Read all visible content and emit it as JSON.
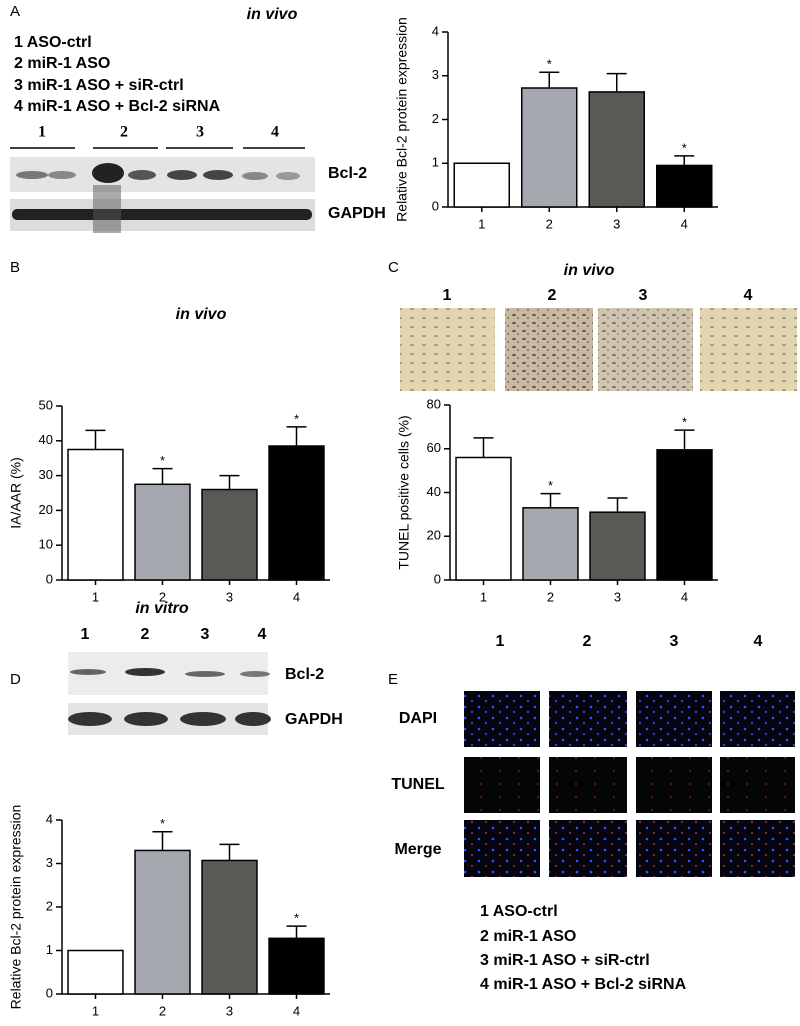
{
  "panel_labels": [
    "A",
    "B",
    "C",
    "D",
    "E"
  ],
  "panel_a": {
    "title": "in vivo",
    "legend": [
      "1  ASO-ctrl",
      "2  miR-1 ASO",
      "3  miR-1 ASO + siR-ctrl",
      "4  miR-1 ASO + Bcl-2 siRNA"
    ],
    "lane_labels": [
      "1",
      "2",
      "3",
      "4"
    ],
    "blot_labels": [
      "Bcl-2",
      "GAPDH"
    ]
  },
  "panel_c": {
    "image_labels": [
      "1",
      "2",
      "3",
      "4"
    ]
  },
  "panel_d": {
    "title": "in vitro",
    "lane_labels": [
      "1",
      "2",
      "3",
      "4"
    ],
    "blot_labels": [
      "Bcl-2",
      "GAPDH"
    ]
  },
  "panel_e": {
    "column_labels": [
      "1",
      "2",
      "3",
      "4"
    ],
    "row_labels": [
      "DAPI",
      "TUNEL",
      "Merge"
    ],
    "legend": [
      "1  ASO-ctrl",
      "2  miR-1 ASO",
      "3  miR-1 ASO + siR-ctrl",
      "4  miR-1 ASO + Bcl-2 siRNA"
    ]
  },
  "chart_data": [
    {
      "type": "bar",
      "y_label": "Relative Bcl-2 protein expression",
      "categories": [
        "1",
        "2",
        "3",
        "4"
      ],
      "values": [
        1.0,
        2.72,
        2.63,
        0.95
      ],
      "errors": [
        null,
        0.36,
        0.42,
        0.22
      ],
      "significance": [
        null,
        "*",
        null,
        "*"
      ],
      "colors": [
        "#ffffff",
        "#a6a8b0",
        "#595a55",
        "#000000"
      ],
      "ylim": [
        0,
        4
      ],
      "yticks": [
        0,
        1,
        2,
        3,
        4
      ]
    },
    {
      "type": "bar",
      "title": "in vivo",
      "y_label": "IA/AAR (%)",
      "categories": [
        "1",
        "2",
        "3",
        "4"
      ],
      "values": [
        37.5,
        27.5,
        26,
        38.5
      ],
      "errors": [
        5.5,
        4.5,
        4,
        5.5
      ],
      "significance": [
        null,
        "*",
        null,
        "*"
      ],
      "colors": [
        "#ffffff",
        "#a6a8b0",
        "#595a55",
        "#000000"
      ],
      "ylim": [
        0,
        50
      ],
      "yticks": [
        0,
        10,
        20,
        30,
        40,
        50
      ]
    },
    {
      "type": "bar",
      "title": "in vivo",
      "y_label": "TUNEL positive cells (%)",
      "categories": [
        "1",
        "2",
        "3",
        "4"
      ],
      "values": [
        56,
        33,
        31,
        59.5
      ],
      "errors": [
        9,
        6.5,
        6.5,
        9
      ],
      "significance": [
        null,
        "*",
        null,
        "*"
      ],
      "colors": [
        "#ffffff",
        "#a6a8b0",
        "#595a55",
        "#000000"
      ],
      "ylim": [
        0,
        80
      ],
      "yticks": [
        0,
        20,
        40,
        60,
        80
      ]
    },
    {
      "type": "bar",
      "y_label": "Relative Bcl-2 protein expression",
      "categories": [
        "1",
        "2",
        "3",
        "4"
      ],
      "values": [
        1.0,
        3.3,
        3.07,
        1.28
      ],
      "errors": [
        null,
        0.43,
        0.37,
        0.28
      ],
      "significance": [
        null,
        "*",
        null,
        "*"
      ],
      "colors": [
        "#ffffff",
        "#a6a8b0",
        "#595a55",
        "#000000"
      ],
      "ylim": [
        0,
        4
      ],
      "yticks": [
        0,
        1,
        2,
        3,
        4
      ]
    }
  ]
}
